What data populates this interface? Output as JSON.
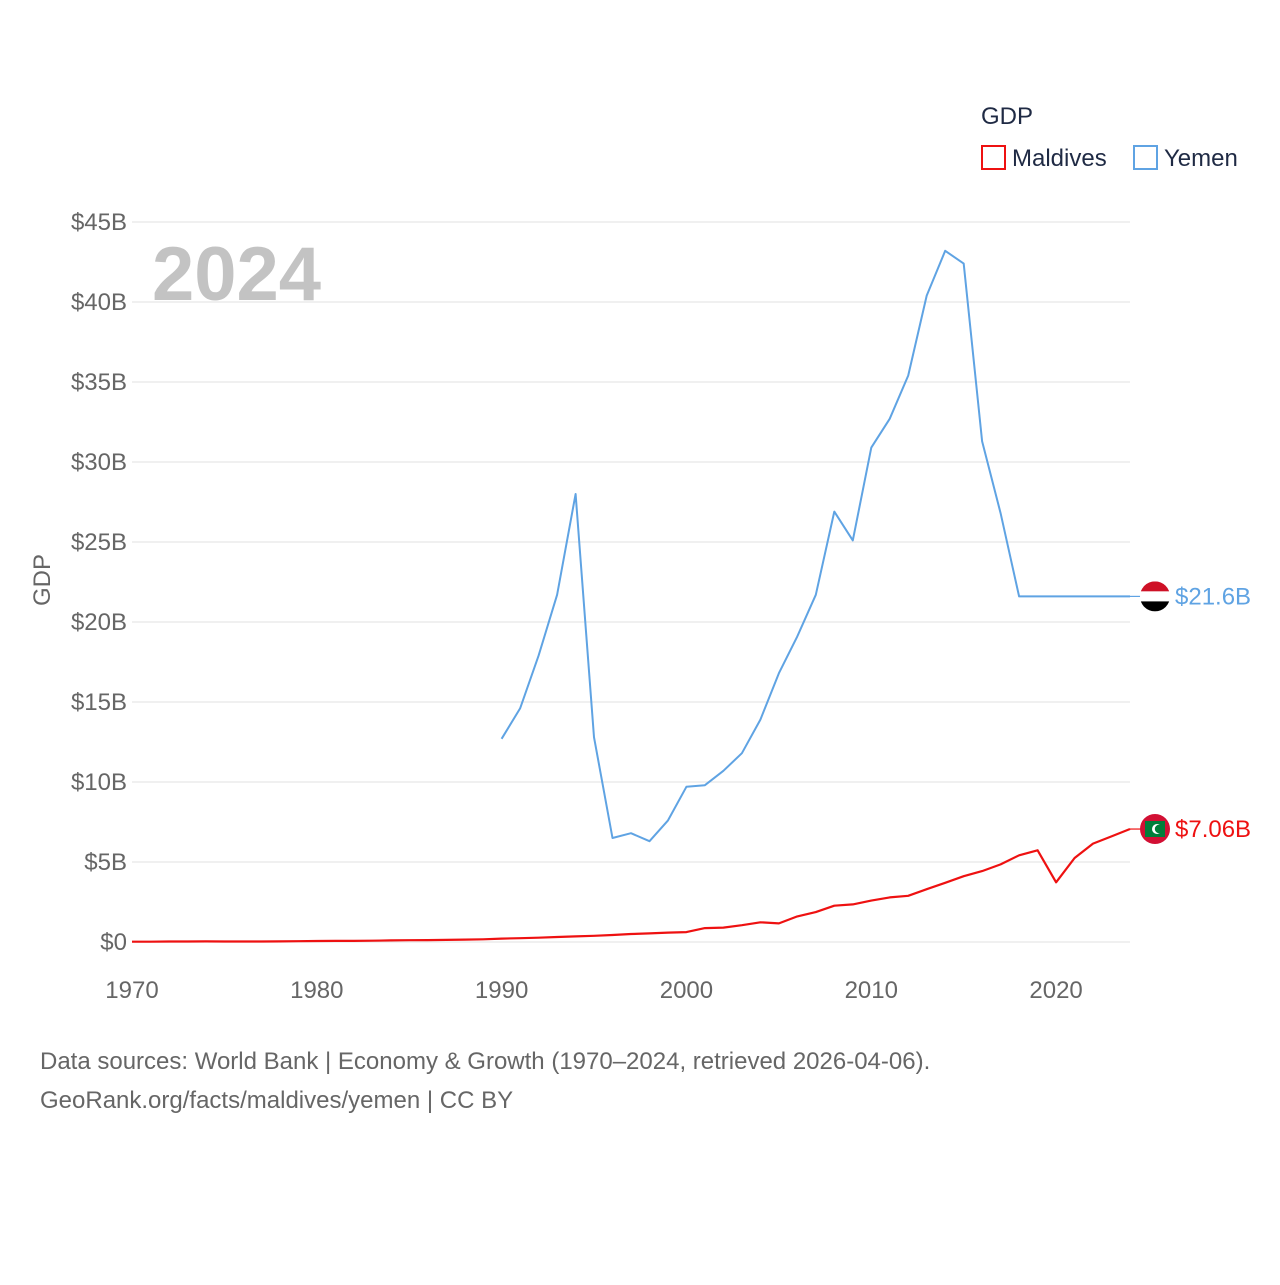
{
  "colors": {
    "maldives": "#ee1111",
    "yemen": "#5fa3e3",
    "grid": "#e6e6e6",
    "text": "#666666"
  },
  "legend": {
    "title": "GDP",
    "items": [
      "Maldives",
      "Yemen"
    ]
  },
  "year_label": "2024",
  "source": {
    "line1": "Data sources: World Bank | Economy & Growth (1970–2024, retrieved 2026-04-06).",
    "line2": "GeoRank.org/facts/maldives/yemen | CC BY"
  },
  "chart_data": {
    "type": "line",
    "title": "GDP",
    "xlabel": "",
    "ylabel": "GDP",
    "xlim": [
      1970,
      2024
    ],
    "ylim": [
      0,
      45
    ],
    "y_unit": "billion USD",
    "x_ticks": [
      1970,
      1980,
      1990,
      2000,
      2010,
      2020
    ],
    "y_ticks": [
      0,
      5,
      10,
      15,
      20,
      25,
      30,
      35,
      40,
      45
    ],
    "y_tick_labels": [
      "$0",
      "$5B",
      "$10B",
      "$15B",
      "$20B",
      "$25B",
      "$30B",
      "$35B",
      "$40B",
      "$45B"
    ],
    "series": [
      {
        "name": "Maldives",
        "end_label": "$7.06B",
        "x": [
          1970,
          1971,
          1972,
          1973,
          1974,
          1975,
          1976,
          1977,
          1978,
          1979,
          1980,
          1981,
          1982,
          1983,
          1984,
          1985,
          1986,
          1987,
          1988,
          1989,
          1990,
          1991,
          1992,
          1993,
          1994,
          1995,
          1996,
          1997,
          1998,
          1999,
          2000,
          2001,
          2002,
          2003,
          2004,
          2005,
          2006,
          2007,
          2008,
          2009,
          2010,
          2011,
          2012,
          2013,
          2014,
          2015,
          2016,
          2017,
          2018,
          2019,
          2020,
          2021,
          2022,
          2023,
          2024
        ],
        "values": [
          0.02,
          0.02,
          0.03,
          0.03,
          0.04,
          0.03,
          0.03,
          0.03,
          0.04,
          0.05,
          0.06,
          0.07,
          0.07,
          0.08,
          0.1,
          0.11,
          0.12,
          0.13,
          0.15,
          0.17,
          0.21,
          0.24,
          0.27,
          0.31,
          0.35,
          0.39,
          0.44,
          0.5,
          0.54,
          0.59,
          0.62,
          0.87,
          0.9,
          1.05,
          1.23,
          1.16,
          1.6,
          1.87,
          2.27,
          2.35,
          2.59,
          2.79,
          2.89,
          3.3,
          3.7,
          4.11,
          4.43,
          4.85,
          5.42,
          5.73,
          3.73,
          5.25,
          6.15,
          6.6,
          7.06
        ]
      },
      {
        "name": "Yemen",
        "end_label": "$21.6B",
        "x": [
          1990,
          1991,
          1992,
          1993,
          1994,
          1995,
          1996,
          1997,
          1998,
          1999,
          2000,
          2001,
          2002,
          2003,
          2004,
          2005,
          2006,
          2007,
          2008,
          2009,
          2010,
          2011,
          2012,
          2013,
          2014,
          2015,
          2016,
          2017,
          2018,
          2019,
          2020,
          2021,
          2022,
          2023,
          2024
        ],
        "values": [
          12.7,
          14.6,
          17.9,
          21.7,
          28.0,
          12.8,
          6.5,
          6.8,
          6.3,
          7.6,
          9.7,
          9.8,
          10.7,
          11.8,
          13.9,
          16.8,
          19.1,
          21.7,
          26.9,
          25.1,
          30.9,
          32.7,
          35.4,
          40.4,
          43.2,
          42.4,
          31.3,
          26.8,
          21.6,
          21.6,
          21.6,
          21.6,
          21.6,
          21.6,
          21.6
        ]
      }
    ]
  }
}
